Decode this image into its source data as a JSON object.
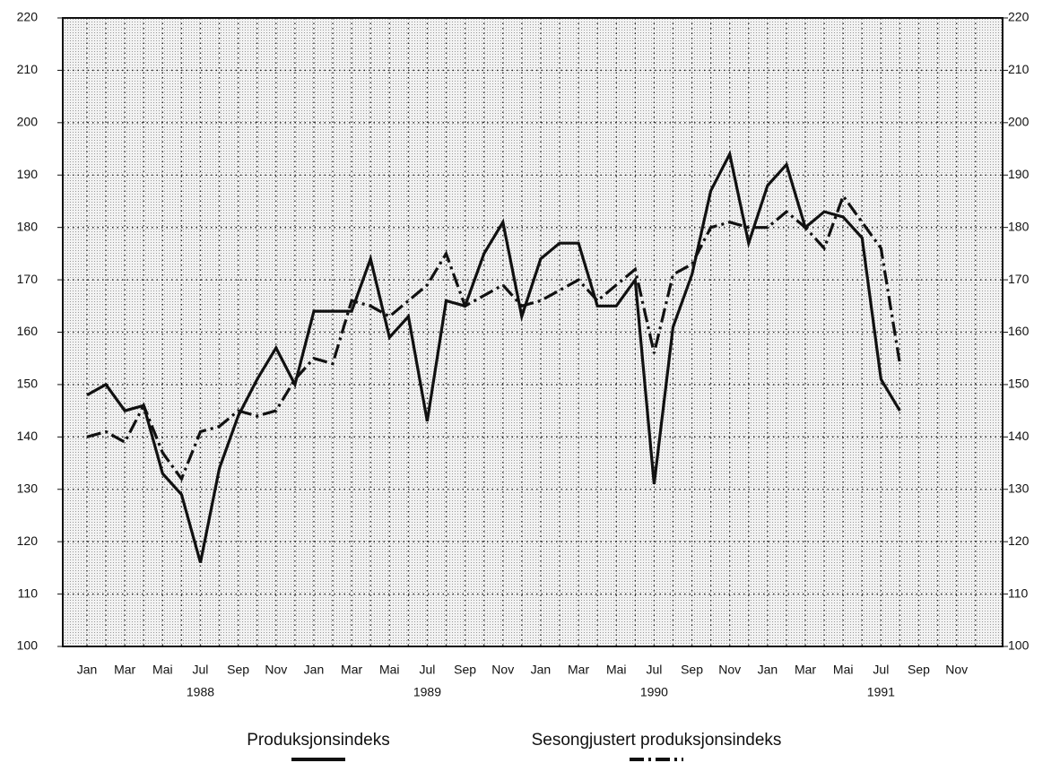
{
  "chart_data": {
    "type": "line",
    "categories": [
      "Jan",
      null,
      "Mar",
      null,
      "Mai",
      null,
      "Jul",
      null,
      "Sep",
      null,
      "Nov",
      null,
      "Jan",
      null,
      "Mar",
      null,
      "Mai",
      null,
      "Jul",
      null,
      "Sep",
      null,
      "Nov",
      null,
      "Jan",
      null,
      "Mar",
      null,
      "Mai",
      null,
      "Jul",
      null,
      "Sep",
      null,
      "Nov",
      null,
      "Jan",
      null,
      "Mar",
      null,
      "Mai",
      null,
      "Jul",
      null,
      "Sep",
      null,
      "Nov",
      null
    ],
    "years": [
      "1988",
      "1989",
      "1990",
      "1991"
    ],
    "series": [
      {
        "name": "Produksjonsindeks",
        "color": "#111111",
        "style": "solid",
        "values": [
          148,
          150,
          145,
          146,
          133,
          129,
          116,
          134,
          144,
          151,
          157,
          150,
          164,
          164,
          164,
          174,
          159,
          163,
          143,
          166,
          165,
          175,
          181,
          163,
          174,
          177,
          177,
          165,
          165,
          170,
          131,
          161,
          171,
          187,
          194,
          177,
          188,
          192,
          180,
          183,
          182,
          178,
          151,
          145,
          null,
          null,
          null,
          null
        ]
      },
      {
        "name": "Sesongjustert produksjonsindeks",
        "color": "#111111",
        "style": "dash-dot",
        "values": [
          140,
          141,
          139,
          146,
          137,
          132,
          141,
          142,
          145,
          144,
          145,
          151,
          155,
          154,
          166,
          165,
          163,
          166,
          169,
          175,
          165,
          167,
          169,
          165,
          166,
          168,
          170,
          166,
          169,
          172,
          156,
          171,
          173,
          180,
          181,
          180,
          180,
          183,
          180,
          176,
          186,
          181,
          176,
          154,
          null,
          null,
          null,
          null
        ]
      }
    ],
    "ylim": [
      100,
      220
    ],
    "yticks": [
      100,
      110,
      120,
      130,
      140,
      150,
      160,
      170,
      180,
      190,
      200,
      210,
      220
    ],
    "grid": true
  }
}
